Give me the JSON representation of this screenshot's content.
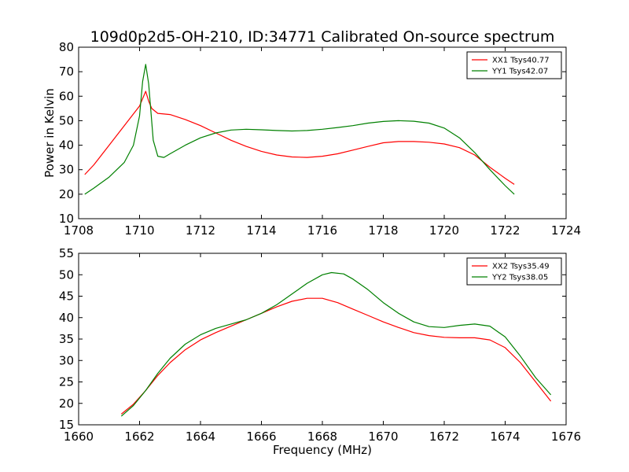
{
  "figure_title": "109d0p2d5-OH-210, ID:34771 Calibrated On-source spectrum",
  "colors": {
    "series_red": "#ff0000",
    "series_green": "#008000",
    "axes": "#000000",
    "background": "#ffffff"
  },
  "chart_data": [
    {
      "type": "line",
      "title": "109d0p2d5-OH-210, ID:34771 Calibrated On-source spectrum",
      "xlabel": "",
      "ylabel": "Power in Kelvin",
      "xlim": [
        1708,
        1724
      ],
      "ylim": [
        10,
        80
      ],
      "xticks": [
        1708,
        1710,
        1712,
        1714,
        1716,
        1718,
        1720,
        1722,
        1724
      ],
      "yticks": [
        10,
        20,
        30,
        40,
        50,
        60,
        70,
        80
      ],
      "grid": false,
      "legend_position": "top-right",
      "series": [
        {
          "name": "XX1 Tsys40.77",
          "color": "#ff0000",
          "x": [
            1708.2,
            1708.5,
            1709.0,
            1709.5,
            1710.0,
            1710.2,
            1710.3,
            1710.4,
            1710.6,
            1711.0,
            1711.5,
            1712.0,
            1712.5,
            1713.0,
            1713.5,
            1714.0,
            1714.5,
            1715.0,
            1715.5,
            1716.0,
            1716.5,
            1717.0,
            1717.5,
            1718.0,
            1718.5,
            1719.0,
            1719.5,
            1720.0,
            1720.5,
            1721.0,
            1721.5,
            1722.0,
            1722.3
          ],
          "y": [
            28,
            32,
            40,
            48,
            56,
            62,
            58,
            55,
            53,
            52.5,
            50.5,
            48,
            45,
            42,
            39.5,
            37.5,
            36,
            35.2,
            35,
            35.5,
            36.5,
            38,
            39.5,
            41,
            41.5,
            41.5,
            41.2,
            40.5,
            39,
            36,
            31,
            26.5,
            24
          ]
        },
        {
          "name": "YY1 Tsys42.07",
          "color": "#008000",
          "x": [
            1708.2,
            1708.5,
            1709.0,
            1709.5,
            1709.8,
            1710.0,
            1710.1,
            1710.2,
            1710.3,
            1710.45,
            1710.6,
            1710.8,
            1711.0,
            1711.5,
            1712.0,
            1712.5,
            1713.0,
            1713.5,
            1714.0,
            1714.5,
            1715.0,
            1715.5,
            1716.0,
            1716.5,
            1717.0,
            1717.5,
            1718.0,
            1718.5,
            1719.0,
            1719.5,
            1720.0,
            1720.5,
            1721.0,
            1721.5,
            1722.0,
            1722.3
          ],
          "y": [
            20,
            22.5,
            27,
            33,
            40,
            52,
            66,
            73,
            65,
            42,
            35.5,
            35,
            36.5,
            40,
            43,
            45,
            46.2,
            46.5,
            46.3,
            46,
            45.8,
            46,
            46.5,
            47.2,
            48,
            49,
            49.7,
            50,
            49.8,
            49,
            47,
            43,
            37,
            30,
            23.5,
            20
          ]
        }
      ]
    },
    {
      "type": "line",
      "title": "",
      "xlabel": "Frequency (MHz)",
      "ylabel": "",
      "xlim": [
        1660,
        1676
      ],
      "ylim": [
        15,
        55
      ],
      "xticks": [
        1660,
        1662,
        1664,
        1666,
        1668,
        1670,
        1672,
        1674,
        1676
      ],
      "yticks": [
        15,
        20,
        25,
        30,
        35,
        40,
        45,
        50,
        55
      ],
      "grid": false,
      "legend_position": "top-right",
      "series": [
        {
          "name": "XX2 Tsys35.49",
          "color": "#ff0000",
          "x": [
            1661.4,
            1661.8,
            1662.2,
            1662.6,
            1663.0,
            1663.5,
            1664.0,
            1664.5,
            1665.0,
            1665.5,
            1666.0,
            1666.5,
            1667.0,
            1667.5,
            1668.0,
            1668.5,
            1669.0,
            1669.5,
            1670.0,
            1670.5,
            1671.0,
            1671.5,
            1672.0,
            1672.5,
            1673.0,
            1673.5,
            1674.0,
            1674.5,
            1675.0,
            1675.5
          ],
          "y": [
            17.5,
            19.8,
            23,
            26.5,
            29.5,
            32.5,
            34.8,
            36.5,
            38,
            39.5,
            41,
            42.5,
            43.8,
            44.5,
            44.5,
            43.5,
            42,
            40.5,
            39,
            37.7,
            36.5,
            35.8,
            35.4,
            35.3,
            35.3,
            34.8,
            33,
            29.5,
            25,
            20.5
          ]
        },
        {
          "name": "YY2 Tsys38.05",
          "color": "#008000",
          "x": [
            1661.4,
            1661.8,
            1662.2,
            1662.6,
            1663.0,
            1663.5,
            1664.0,
            1664.5,
            1665.0,
            1665.5,
            1666.0,
            1666.5,
            1667.0,
            1667.5,
            1668.0,
            1668.3,
            1668.7,
            1669.0,
            1669.5,
            1670.0,
            1670.5,
            1671.0,
            1671.5,
            1672.0,
            1672.5,
            1673.0,
            1673.5,
            1674.0,
            1674.5,
            1675.0,
            1675.5
          ],
          "y": [
            17,
            19.5,
            23,
            27,
            30.5,
            33.8,
            36,
            37.5,
            38.5,
            39.5,
            41,
            43,
            45.5,
            48,
            50,
            50.5,
            50.2,
            49,
            46.5,
            43.5,
            41,
            39,
            37.9,
            37.7,
            38.2,
            38.5,
            38,
            35.5,
            31,
            26,
            22
          ]
        }
      ]
    }
  ]
}
